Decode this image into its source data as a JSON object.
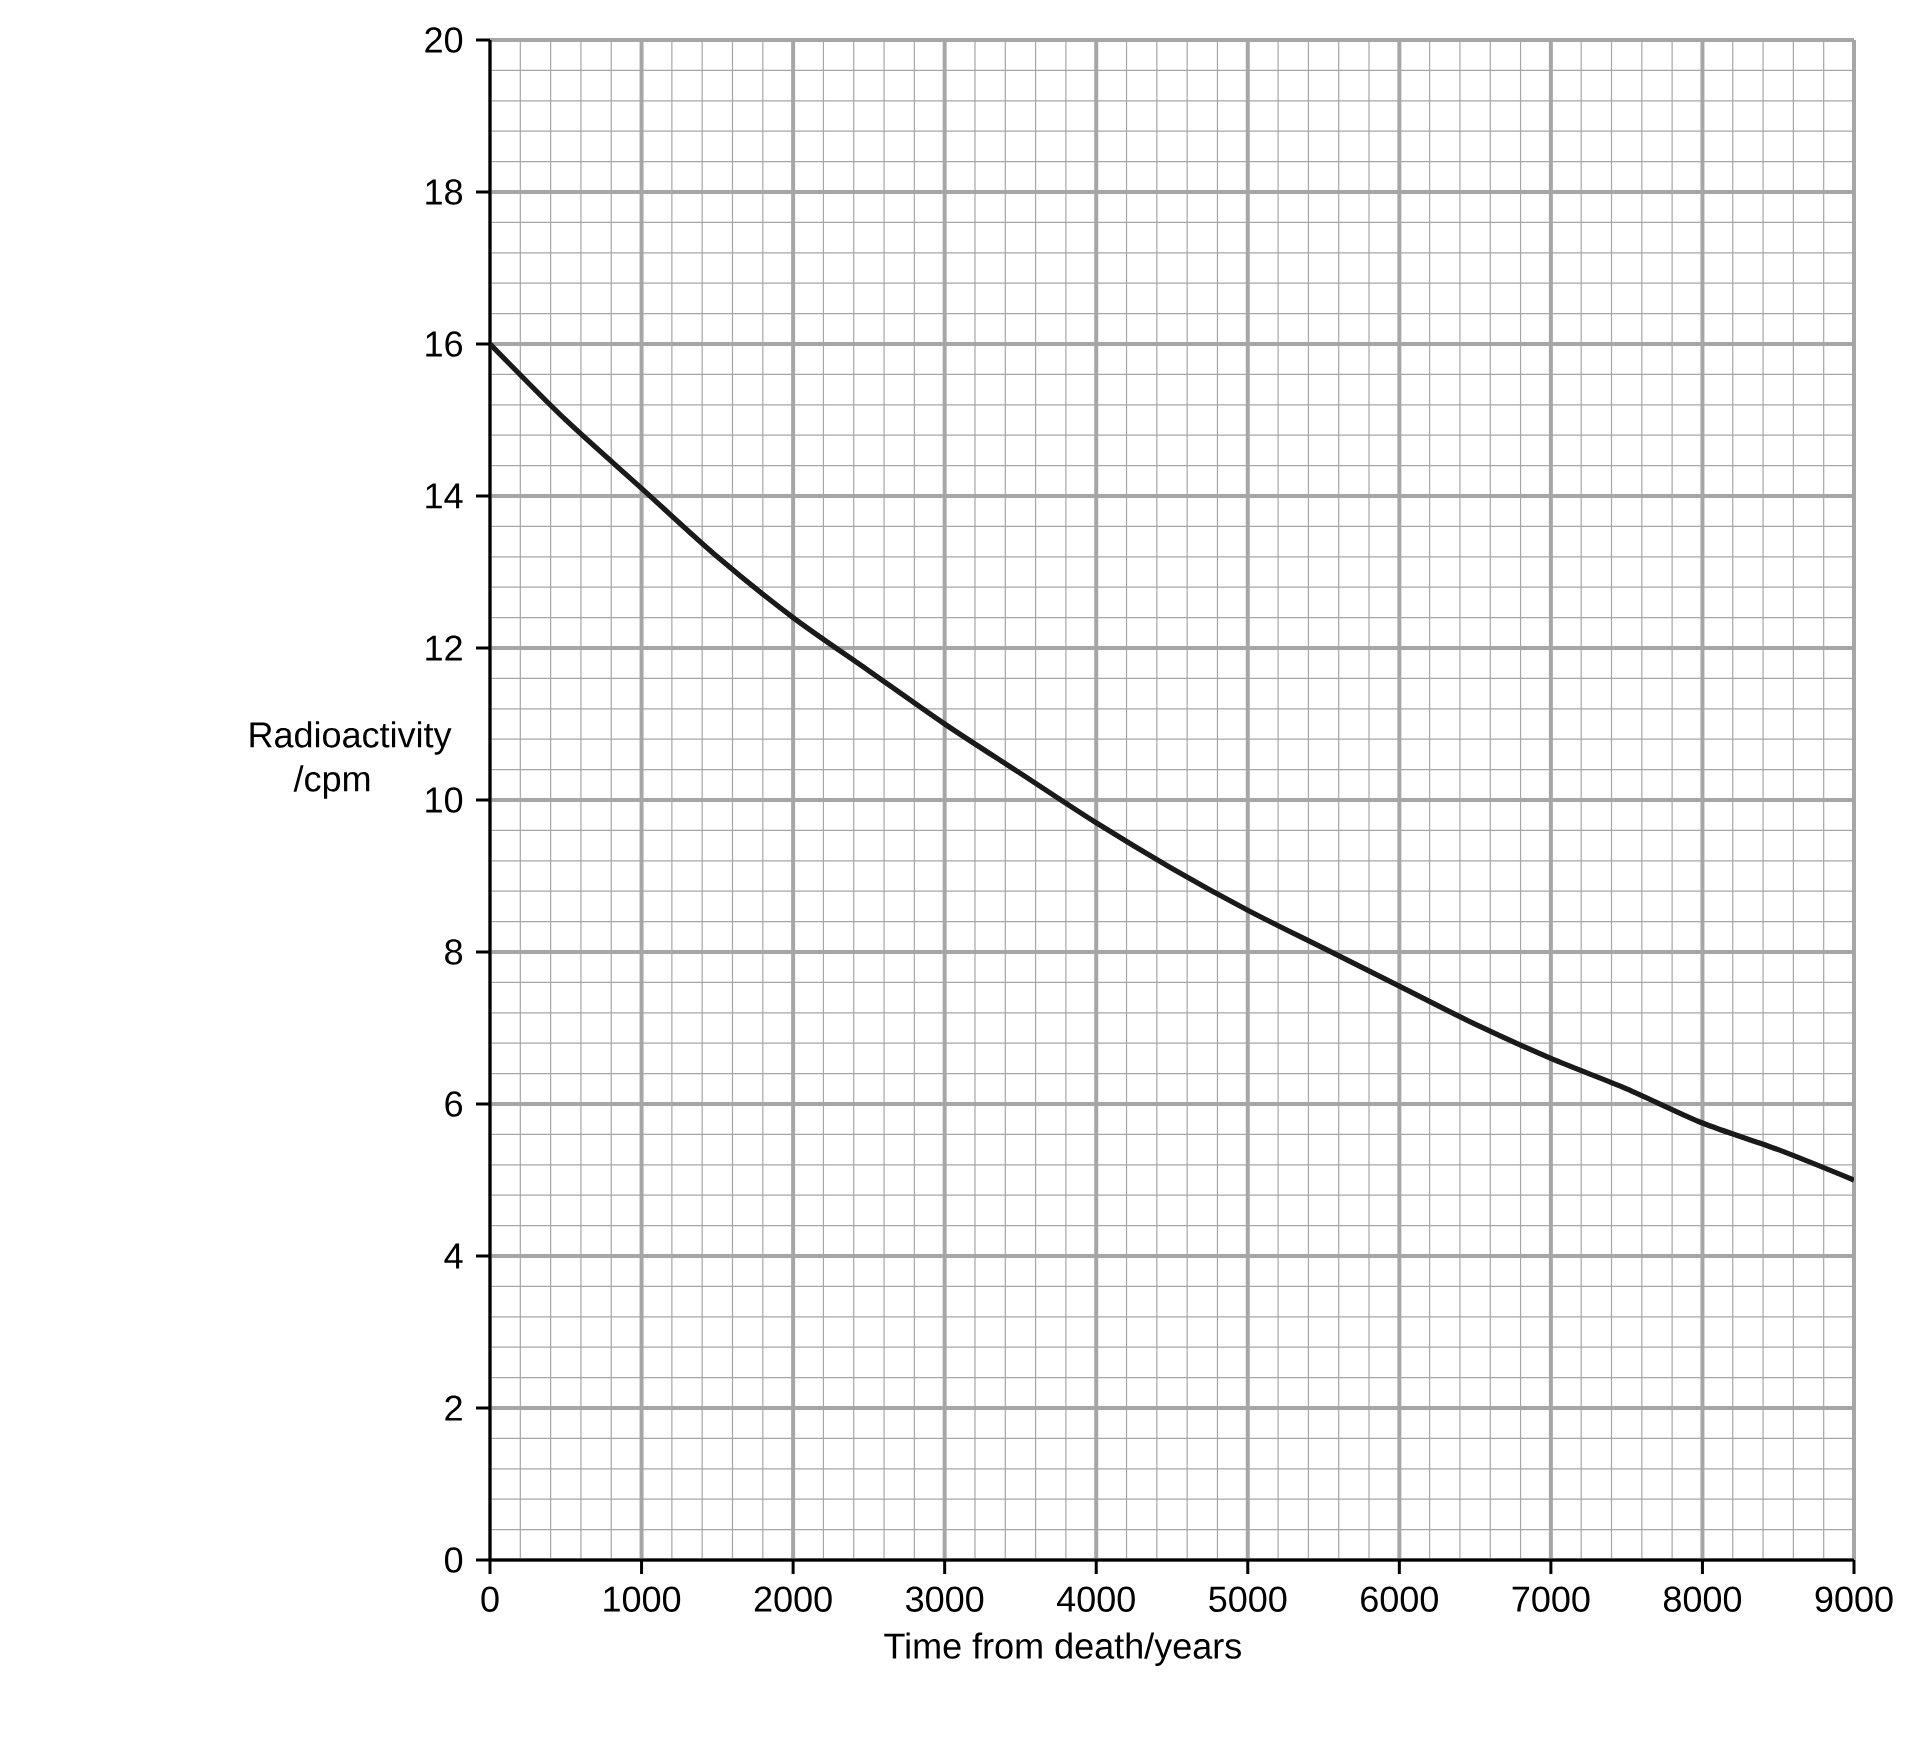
{
  "chart_data": {
    "type": "line",
    "xlabel": "Time from death/years",
    "ylabel": "Radioactivity /cpm",
    "x": [
      0,
      500,
      1000,
      1500,
      2000,
      2500,
      3000,
      3500,
      4000,
      4500,
      5000,
      5500,
      6000,
      6500,
      7000,
      7500,
      8000,
      8500,
      9000
    ],
    "series": [
      {
        "color": "#1a1a1a",
        "values": [
          16,
          15.0,
          14.1,
          13.2,
          12.4,
          11.7,
          11.0,
          10.35,
          9.7,
          9.1,
          8.55,
          8.05,
          7.55,
          7.05,
          6.6,
          6.2,
          5.75,
          5.4,
          5.0
        ]
      }
    ],
    "xlim": [
      0,
      9000
    ],
    "ylim": [
      0,
      20
    ],
    "xticks": [
      0,
      1000,
      2000,
      3000,
      4000,
      5000,
      6000,
      7000,
      8000,
      9000
    ],
    "yticks": [
      0,
      2,
      4,
      6,
      8,
      10,
      12,
      14,
      16,
      18,
      20
    ],
    "grid": true,
    "marker": "none",
    "line_style": "solid"
  }
}
